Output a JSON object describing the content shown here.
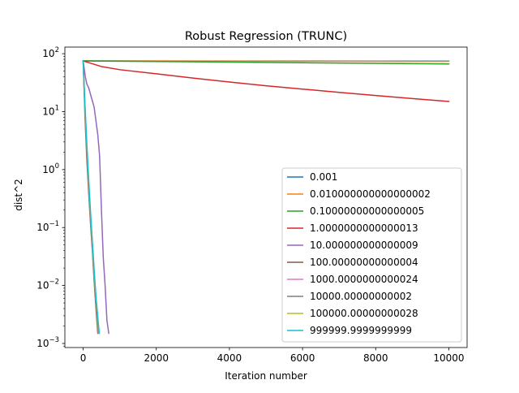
{
  "chart_data": {
    "type": "line",
    "title": "Robust Regression (TRUNC)",
    "xlabel": "Iteration number",
    "ylabel": "dist^2",
    "yscale": "log",
    "xlim": [
      -500,
      10500
    ],
    "ylim": [
      0.00085,
      130
    ],
    "x_ticks": [
      {
        "value": 0,
        "label": "0"
      },
      {
        "value": 2000,
        "label": "2000"
      },
      {
        "value": 4000,
        "label": "4000"
      },
      {
        "value": 6000,
        "label": "6000"
      },
      {
        "value": 8000,
        "label": "8000"
      },
      {
        "value": 10000,
        "label": "10000"
      }
    ],
    "y_ticks": [
      {
        "value": 0.001,
        "base": "10",
        "exp": "−3"
      },
      {
        "value": 0.01,
        "base": "10",
        "exp": "−2"
      },
      {
        "value": 0.1,
        "base": "10",
        "exp": "−1"
      },
      {
        "value": 1,
        "base": "10",
        "exp": "0"
      },
      {
        "value": 10,
        "base": "10",
        "exp": "1"
      },
      {
        "value": 100,
        "base": "10",
        "exp": "2"
      }
    ],
    "grid": false,
    "legend_position": "lower-right",
    "series": [
      {
        "name": "0.001",
        "color": "#1f77b4",
        "x": [
          0,
          2000,
          4000,
          6000,
          8000,
          10000
        ],
        "y": [
          75,
          74.9,
          74.8,
          74.7,
          74.6,
          74.5
        ]
      },
      {
        "name": "0.010000000000000002",
        "color": "#ff7f0e",
        "x": [
          0,
          2000,
          4000,
          6000,
          8000,
          10000
        ],
        "y": [
          75,
          74.7,
          74.4,
          74.1,
          73.8,
          73.5
        ]
      },
      {
        "name": "0.10000000000000005",
        "color": "#2ca02c",
        "x": [
          0,
          2000,
          4000,
          6000,
          8000,
          10000
        ],
        "y": [
          75,
          73.2,
          71.5,
          69.8,
          68.1,
          66.5
        ]
      },
      {
        "name": "1.0000000000000013",
        "color": "#d62728",
        "x": [
          0,
          500,
          1000,
          2000,
          3000,
          4000,
          5000,
          6000,
          7000,
          8000,
          9000,
          10000
        ],
        "y": [
          75,
          60,
          53,
          45,
          38,
          32.5,
          28,
          24.5,
          21.5,
          19,
          16.8,
          15
        ]
      },
      {
        "name": "10.000000000000009",
        "color": "#9467bd",
        "x": [
          0,
          60,
          100,
          150,
          200,
          300,
          400,
          450,
          500,
          550,
          600,
          650,
          700
        ],
        "y": [
          75,
          40,
          30,
          26,
          20,
          12,
          4,
          1.7,
          0.2,
          0.03,
          0.01,
          0.0025,
          0.0015
        ]
      },
      {
        "name": "100.00000000000004",
        "color": "#8c564b",
        "x": [
          0,
          50,
          100,
          150,
          200,
          250,
          300,
          350,
          400
        ],
        "y": [
          75,
          8,
          1.5,
          0.4,
          0.12,
          0.04,
          0.012,
          0.004,
          0.0015
        ]
      },
      {
        "name": "1000.0000000000024",
        "color": "#e377c2",
        "x": [
          0,
          50,
          100,
          150,
          200,
          250,
          300,
          350,
          410
        ],
        "y": [
          75,
          10,
          2,
          0.5,
          0.14,
          0.045,
          0.014,
          0.005,
          0.0015
        ]
      },
      {
        "name": "10000.00000000002",
        "color": "#7f7f7f",
        "x": [
          0,
          50,
          100,
          150,
          200,
          250,
          300,
          350,
          420
        ],
        "y": [
          75,
          11,
          2.2,
          0.55,
          0.15,
          0.05,
          0.015,
          0.005,
          0.0015
        ]
      },
      {
        "name": "100000.00000000028",
        "color": "#bcbd22",
        "x": [
          0,
          50,
          100,
          150,
          200,
          250,
          300,
          350,
          430
        ],
        "y": [
          75,
          12,
          2.5,
          0.6,
          0.17,
          0.055,
          0.017,
          0.006,
          0.0015
        ]
      },
      {
        "name": "999999.9999999999",
        "color": "#17becf",
        "x": [
          0,
          50,
          100,
          150,
          200,
          250,
          300,
          350,
          440
        ],
        "y": [
          75,
          13,
          2.8,
          0.7,
          0.19,
          0.06,
          0.019,
          0.0065,
          0.0015
        ]
      }
    ]
  }
}
